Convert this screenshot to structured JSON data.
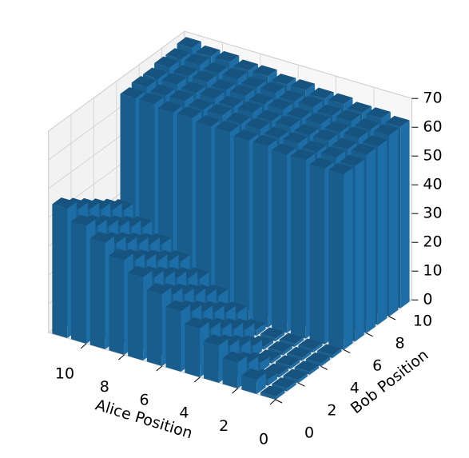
{
  "chart_data": {
    "type": "bar3d",
    "x_label": "Alice Position",
    "y_label": "Bob Position",
    "x": [
      0,
      1,
      2,
      3,
      4,
      5,
      6,
      7,
      8,
      9,
      10,
      11
    ],
    "y": [
      0,
      1,
      2,
      3,
      4,
      5,
      6,
      7,
      8,
      9,
      10,
      11
    ],
    "values": [
      [
        1,
        1,
        1,
        1,
        1,
        1,
        61,
        61,
        62,
        62,
        63,
        63
      ],
      [
        5,
        2,
        1,
        1,
        1,
        1,
        61,
        62,
        62,
        63,
        63,
        64
      ],
      [
        9,
        6,
        3,
        1,
        1,
        1,
        62,
        62,
        63,
        63,
        64,
        64
      ],
      [
        13,
        10,
        7,
        4,
        1,
        1,
        62,
        63,
        63,
        64,
        64,
        65
      ],
      [
        17,
        14,
        11,
        8,
        5,
        2,
        63,
        63,
        64,
        64,
        65,
        65
      ],
      [
        21,
        18,
        15,
        12,
        9,
        6,
        63,
        64,
        64,
        65,
        65,
        66
      ],
      [
        25,
        22,
        19,
        16,
        13,
        10,
        64,
        64,
        65,
        65,
        66,
        66
      ],
      [
        29,
        26,
        23,
        20,
        17,
        14,
        64,
        65,
        65,
        66,
        66,
        67
      ],
      [
        33,
        30,
        27,
        24,
        21,
        18,
        65,
        65,
        66,
        66,
        67,
        67
      ],
      [
        37,
        34,
        31,
        28,
        25,
        22,
        65,
        66,
        66,
        67,
        67,
        68
      ],
      [
        41,
        38,
        35,
        32,
        29,
        26,
        66,
        66,
        67,
        67,
        68,
        68
      ],
      [
        45,
        42,
        39,
        36,
        33,
        30,
        66,
        67,
        67,
        68,
        68,
        69
      ]
    ],
    "color": "#1f77b4",
    "xlim": [
      0,
      12
    ],
    "ylim": [
      0,
      12
    ],
    "zlim": [
      0,
      70
    ],
    "xticks": [
      0,
      2,
      4,
      6,
      8,
      10
    ],
    "yticks": [
      0,
      2,
      4,
      6,
      8,
      10
    ],
    "zticks": [
      0,
      10,
      20,
      30,
      40,
      50,
      60,
      70
    ],
    "grid": true
  }
}
